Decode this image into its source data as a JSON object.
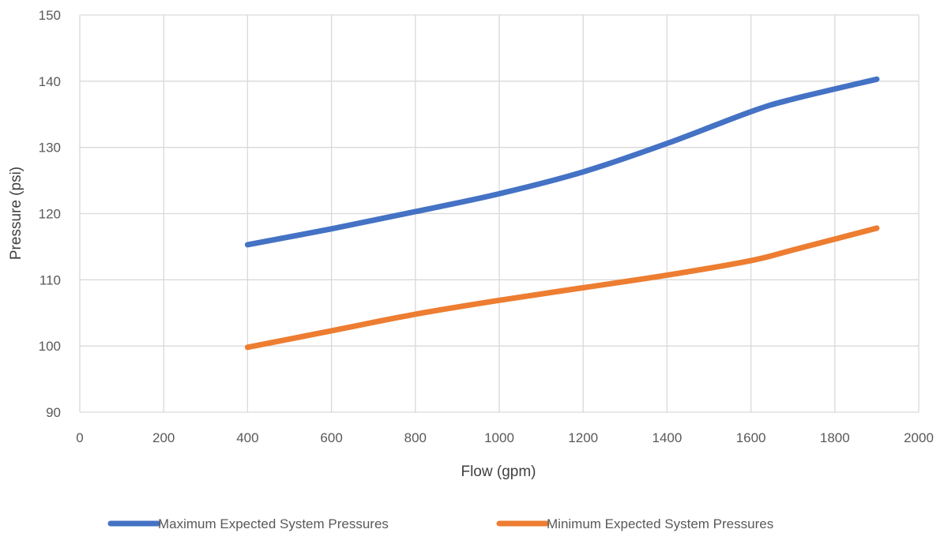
{
  "chart_data": {
    "type": "line",
    "title": "",
    "xlabel": "Flow (gpm)",
    "ylabel": "Pressure (psi)",
    "xlim": [
      0,
      2000
    ],
    "ylim": [
      90,
      150
    ],
    "x_ticks": [
      "0",
      "200",
      "400",
      "600",
      "800",
      "1000",
      "1200",
      "1400",
      "1600",
      "1800",
      "2000"
    ],
    "y_ticks": [
      "90",
      "100",
      "110",
      "120",
      "130",
      "140",
      "150"
    ],
    "grid": true,
    "legend_position": "bottom",
    "series": [
      {
        "name": "Maximum Expected System Pressures",
        "color": "#4472C4",
        "x": [
          400,
          600,
          800,
          1000,
          1200,
          1400,
          1600,
          1700,
          1900
        ],
        "y": [
          115.3,
          117.7,
          120.3,
          123.0,
          126.3,
          130.6,
          135.4,
          137.3,
          140.3
        ]
      },
      {
        "name": "Minimum Expected System Pressures",
        "color": "#ED7D31",
        "x": [
          400,
          600,
          800,
          1000,
          1200,
          1400,
          1600,
          1700,
          1900
        ],
        "y": [
          99.8,
          102.3,
          104.8,
          106.9,
          108.8,
          110.7,
          112.9,
          114.5,
          117.8
        ]
      }
    ]
  }
}
